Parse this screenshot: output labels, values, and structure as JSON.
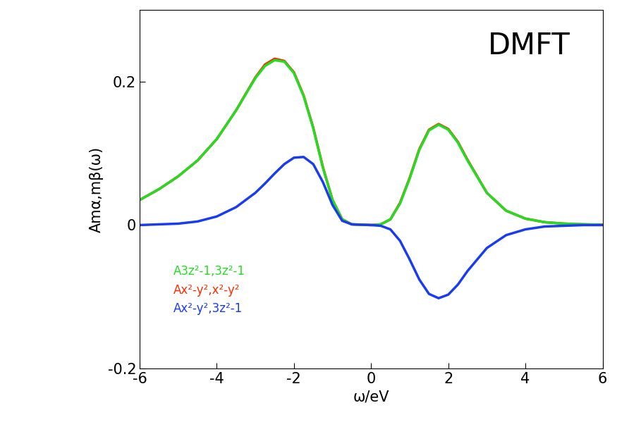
{
  "chart_data": {
    "type": "line",
    "x_label": "ω/eV",
    "y_label": "Amα,mβ(ω)",
    "annotations": [
      "DMFT"
    ],
    "x": [
      -6,
      -5.5,
      -5,
      -4.5,
      -4,
      -3.5,
      -3,
      -2.75,
      -2.5,
      -2.25,
      -2,
      -1.75,
      -1.5,
      -1.25,
      -1,
      -0.75,
      -0.5,
      0,
      0.25,
      0.5,
      0.75,
      1,
      1.25,
      1.5,
      1.75,
      2,
      2.25,
      2.5,
      3,
      3.5,
      4,
      4.5,
      5,
      5.5,
      6
    ],
    "series": [
      {
        "name": "Ax²-y²,x²-y²",
        "color": "#ff2a00",
        "values": [
          0.035,
          0.05,
          0.068,
          0.09,
          0.12,
          0.16,
          0.206,
          0.224,
          0.232,
          0.229,
          0.213,
          0.181,
          0.136,
          0.081,
          0.035,
          0.008,
          0.001,
          0,
          0.001,
          0.008,
          0.031,
          0.066,
          0.106,
          0.133,
          0.141,
          0.134,
          0.116,
          0.091,
          0.045,
          0.02,
          0.009,
          0.004,
          0.002,
          0.001,
          0.0005
        ]
      },
      {
        "name": "A3z²-1,3z²-1",
        "color": "#22dd22",
        "values": [
          0.035,
          0.05,
          0.068,
          0.09,
          0.12,
          0.16,
          0.205,
          0.222,
          0.23,
          0.228,
          0.212,
          0.18,
          0.135,
          0.08,
          0.035,
          0.008,
          0.001,
          0,
          0.001,
          0.008,
          0.03,
          0.065,
          0.105,
          0.132,
          0.14,
          0.133,
          0.115,
          0.09,
          0.045,
          0.02,
          0.009,
          0.004,
          0.002,
          0.001,
          0.0005
        ]
      },
      {
        "name": "Ax²-y²,3z²-1",
        "color": "#1a3cf0",
        "values": [
          0,
          0.001,
          0.002,
          0.005,
          0.012,
          0.025,
          0.045,
          0.058,
          0.072,
          0.085,
          0.094,
          0.095,
          0.085,
          0.06,
          0.028,
          0.006,
          0.001,
          0,
          -0.001,
          -0.006,
          -0.022,
          -0.048,
          -0.076,
          -0.096,
          -0.102,
          -0.097,
          -0.083,
          -0.064,
          -0.032,
          -0.014,
          -0.006,
          -0.002,
          -0.001,
          0,
          0
        ]
      }
    ],
    "legend_order": [
      "A3z²-1,3z²-1",
      "Ax²-y²,x²-y²",
      "Ax²-y²,3z²-1"
    ],
    "legend": "lower left",
    "xlim": [
      -6,
      6
    ],
    "xticks": [
      -6,
      -4,
      -2,
      0,
      2,
      4,
      6
    ],
    "ylim": [
      -0.2,
      0.3
    ],
    "yticks": [
      -0.2,
      0,
      0.2
    ],
    "grid": false
  }
}
